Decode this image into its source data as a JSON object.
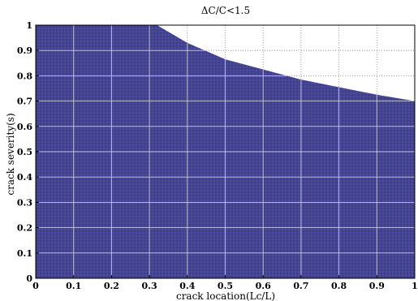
{
  "chart_data": {
    "type": "area",
    "title": "ΔC/C<1.5",
    "xlabel": "crack location(Lc/L)",
    "ylabel": "crack severity(s)",
    "xlim": [
      0,
      1
    ],
    "ylim": [
      0,
      1
    ],
    "xticks": [
      "0",
      "0.1",
      "0.2",
      "0.3",
      "0.4",
      "0.5",
      "0.6",
      "0.7",
      "0.8",
      "0.9",
      "1"
    ],
    "yticks": [
      "0",
      "0.1",
      "0.2",
      "0.3",
      "0.4",
      "0.5",
      "0.6",
      "0.7",
      "0.8",
      "0.9",
      "1"
    ],
    "grid": true,
    "fill_color": "#3c3c8c",
    "boundary": {
      "x": [
        0,
        0.1,
        0.2,
        0.3,
        0.32,
        0.4,
        0.5,
        0.6,
        0.7,
        0.8,
        0.9,
        1.0
      ],
      "y": [
        1.0,
        1.0,
        1.0,
        1.0,
        1.0,
        0.93,
        0.865,
        0.825,
        0.785,
        0.755,
        0.725,
        0.7
      ]
    }
  }
}
